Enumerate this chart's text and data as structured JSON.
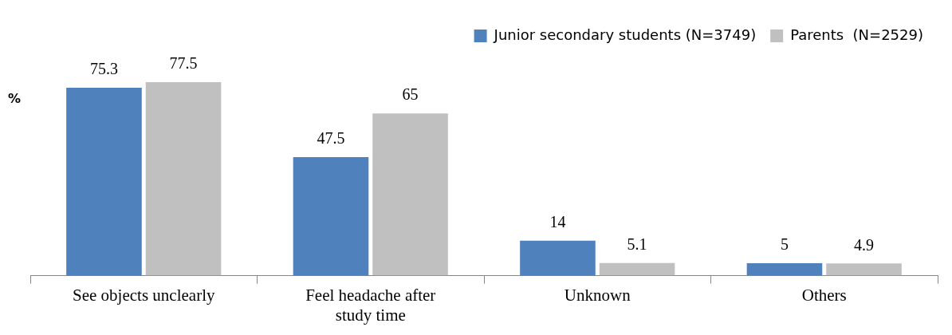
{
  "chart_data": {
    "type": "bar",
    "ylabel": "%",
    "categories": [
      "See objects unclearly",
      "Feel headache after study time",
      "Unknown",
      "Others"
    ],
    "series": [
      {
        "name": "Junior secondary students (N=3749)",
        "color": "#4f81bd",
        "values": [
          75.3,
          47.5,
          14,
          5
        ]
      },
      {
        "name": "Parents  (N=2529)",
        "color": "#c0c0c0",
        "values": [
          77.5,
          65,
          5.1,
          4.9
        ]
      }
    ],
    "data_labels": true,
    "legend": "top right"
  }
}
